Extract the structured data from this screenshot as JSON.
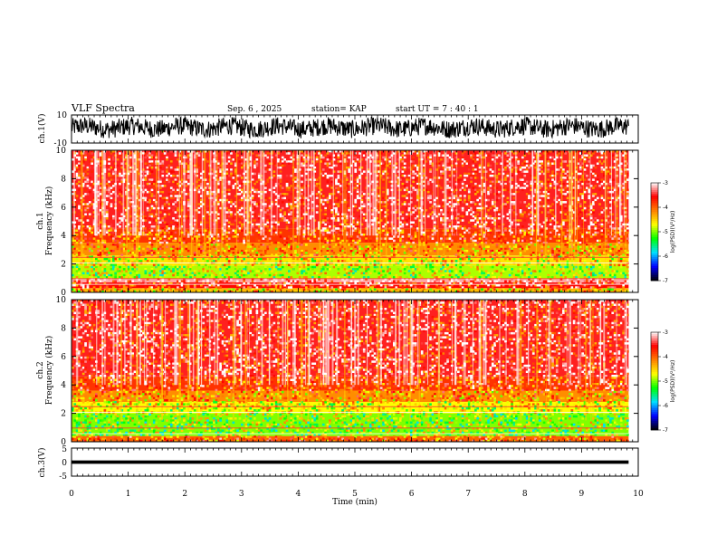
{
  "header": {
    "title": "VLF Spectra",
    "date": "Sep. 6  , 2025",
    "station": "station= KAP",
    "start_ut": "start  UT  =   7 : 40 : 1"
  },
  "colors": {
    "colormap": [
      "#000000",
      "#0000ff",
      "#00e0ff",
      "#00ff00",
      "#ffff00",
      "#ff8000",
      "#ff0000",
      "#ffffff"
    ],
    "waveform": "#000000"
  },
  "chart_data": {
    "type": "heatmap",
    "xlabel": "Time  (min)",
    "x_ticks": [
      "0",
      "1",
      "2",
      "3",
      "4",
      "5",
      "6",
      "7",
      "8",
      "9",
      "10"
    ],
    "xlim": [
      0,
      10
    ],
    "data_end_min": 9.83,
    "panels": [
      {
        "id": "ch1-waveform",
        "type": "line",
        "ylabel": "ch.1(V)",
        "ylim": [
          -10,
          10
        ],
        "y_ticks": [
          "10",
          "-10"
        ],
        "center_v": 1.0,
        "amplitude_v": 6.5
      },
      {
        "id": "ch1-spectrogram",
        "type": "heatmap",
        "ylabel_top": "ch.1",
        "ylabel": "Frequency  (kHz)",
        "ylim": [
          0,
          10
        ],
        "y_ticks": [
          "0",
          "2",
          "4",
          "6",
          "8",
          "10"
        ],
        "bands_khz": [
          {
            "from": 0.0,
            "to": 0.3,
            "level": -4.4
          },
          {
            "from": 0.3,
            "to": 0.7,
            "level": -3.6
          },
          {
            "from": 0.7,
            "to": 0.95,
            "level": -3.2
          },
          {
            "from": 0.95,
            "to": 1.9,
            "level": -4.9
          },
          {
            "from": 1.9,
            "to": 2.6,
            "level": -4.6
          },
          {
            "from": 2.6,
            "to": 3.5,
            "level": -4.2
          },
          {
            "from": 3.5,
            "to": 4.5,
            "level": -3.8
          },
          {
            "from": 4.5,
            "to": 10.0,
            "level": -3.5
          }
        ],
        "colorbar": {
          "label": "log(PSD)(V²/Hz)",
          "ticks": [
            "-3",
            "-4",
            "-5",
            "-6",
            "-7"
          ],
          "range": [
            -7,
            -3
          ]
        }
      },
      {
        "id": "ch2-spectrogram",
        "type": "heatmap",
        "ylabel_top": "ch.2",
        "ylabel": "Frequency  (kHz)",
        "ylim": [
          0,
          10
        ],
        "y_ticks": [
          "0",
          "2",
          "4",
          "6",
          "8",
          "10"
        ],
        "bands_khz": [
          {
            "from": 0.0,
            "to": 0.4,
            "level": -4.0
          },
          {
            "from": 0.4,
            "to": 2.0,
            "level": -5.0
          },
          {
            "from": 2.0,
            "to": 2.8,
            "level": -4.7
          },
          {
            "from": 2.8,
            "to": 3.6,
            "level": -4.2
          },
          {
            "from": 3.6,
            "to": 4.6,
            "level": -3.8
          },
          {
            "from": 4.6,
            "to": 10.0,
            "level": -3.5
          }
        ],
        "colorbar": {
          "label": "log(PSD)(V²/Hz)",
          "ticks": [
            "-3",
            "-4",
            "-5",
            "-6",
            "-7"
          ],
          "range": [
            -7,
            -3
          ]
        }
      },
      {
        "id": "ch3-waveform",
        "type": "line",
        "ylabel": "ch.3(V)",
        "ylim": [
          -5,
          5
        ],
        "y_ticks": [
          "5",
          "0",
          "-5"
        ],
        "center_v": 0.0,
        "amplitude_v": 0.6
      }
    ]
  }
}
